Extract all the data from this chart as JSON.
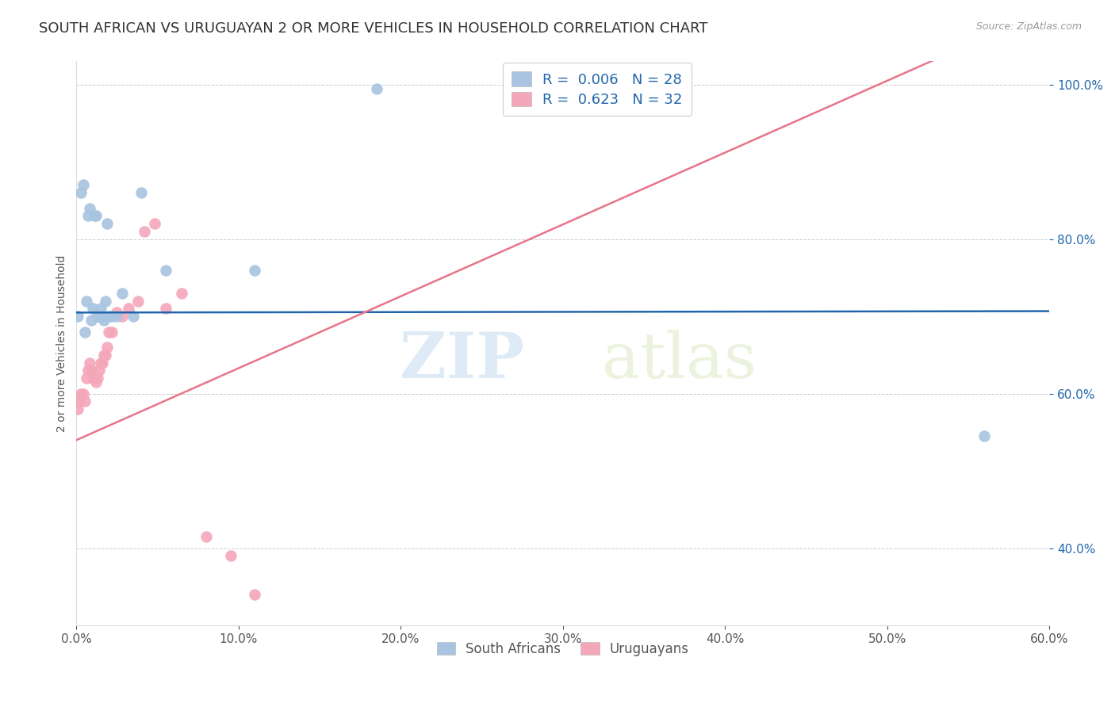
{
  "title": "SOUTH AFRICAN VS URUGUAYAN 2 OR MORE VEHICLES IN HOUSEHOLD CORRELATION CHART",
  "source": "Source: ZipAtlas.com",
  "ylabel": "2 or more Vehicles in Household",
  "xlim": [
    0.0,
    0.6
  ],
  "ylim": [
    0.3,
    1.03
  ],
  "watermark_zip": "ZIP",
  "watermark_atlas": "atlas",
  "legend_sa": "South Africans",
  "legend_uy": "Uruguayans",
  "R_sa": "0.006",
  "N_sa": "28",
  "R_uy": "0.623",
  "N_uy": "32",
  "sa_color": "#a8c4e0",
  "uy_color": "#f4a7b9",
  "sa_line_color": "#2166ac",
  "uy_line_color": "#e8748a",
  "background_color": "#ffffff",
  "title_fontsize": 13,
  "axis_label_fontsize": 10,
  "sa_line_y_intercept": 0.705,
  "sa_line_slope": 0.003,
  "uy_line_y_intercept": 0.54,
  "uy_line_slope": 0.93,
  "sa_points_x": [
    0.001,
    0.003,
    0.004,
    0.005,
    0.006,
    0.007,
    0.008,
    0.009,
    0.01,
    0.011,
    0.012,
    0.013,
    0.014,
    0.015,
    0.016,
    0.017,
    0.018,
    0.019,
    0.02,
    0.022,
    0.025,
    0.028,
    0.035,
    0.04,
    0.055,
    0.11,
    0.185,
    0.56
  ],
  "sa_points_y": [
    0.7,
    0.86,
    0.87,
    0.68,
    0.72,
    0.83,
    0.84,
    0.695,
    0.71,
    0.83,
    0.83,
    0.7,
    0.7,
    0.71,
    0.7,
    0.695,
    0.72,
    0.82,
    0.7,
    0.7,
    0.7,
    0.73,
    0.7,
    0.86,
    0.76,
    0.76,
    0.995,
    0.545
  ],
  "uy_points_x": [
    0.001,
    0.002,
    0.003,
    0.004,
    0.005,
    0.006,
    0.007,
    0.008,
    0.009,
    0.01,
    0.011,
    0.012,
    0.013,
    0.014,
    0.015,
    0.016,
    0.017,
    0.018,
    0.019,
    0.02,
    0.022,
    0.025,
    0.028,
    0.032,
    0.038,
    0.042,
    0.048,
    0.055,
    0.065,
    0.08,
    0.095,
    0.11
  ],
  "uy_points_y": [
    0.58,
    0.59,
    0.6,
    0.6,
    0.59,
    0.62,
    0.63,
    0.64,
    0.63,
    0.62,
    0.62,
    0.615,
    0.62,
    0.63,
    0.64,
    0.64,
    0.65,
    0.65,
    0.66,
    0.68,
    0.68,
    0.705,
    0.7,
    0.71,
    0.72,
    0.81,
    0.82,
    0.71,
    0.73,
    0.415,
    0.39,
    0.34
  ],
  "grid_color": "#cccccc",
  "grid_linestyle": "--",
  "yticks": [
    0.4,
    0.6,
    0.8,
    1.0
  ],
  "ytick_labels": [
    "40.0%",
    "60.0%",
    "80.0%",
    "100.0%"
  ],
  "xticks": [
    0.0,
    0.1,
    0.2,
    0.3,
    0.4,
    0.5,
    0.6
  ],
  "xtick_labels": [
    "0.0%",
    "10.0%",
    "20.0%",
    "30.0%",
    "40.0%",
    "50.0%",
    "60.0%"
  ]
}
